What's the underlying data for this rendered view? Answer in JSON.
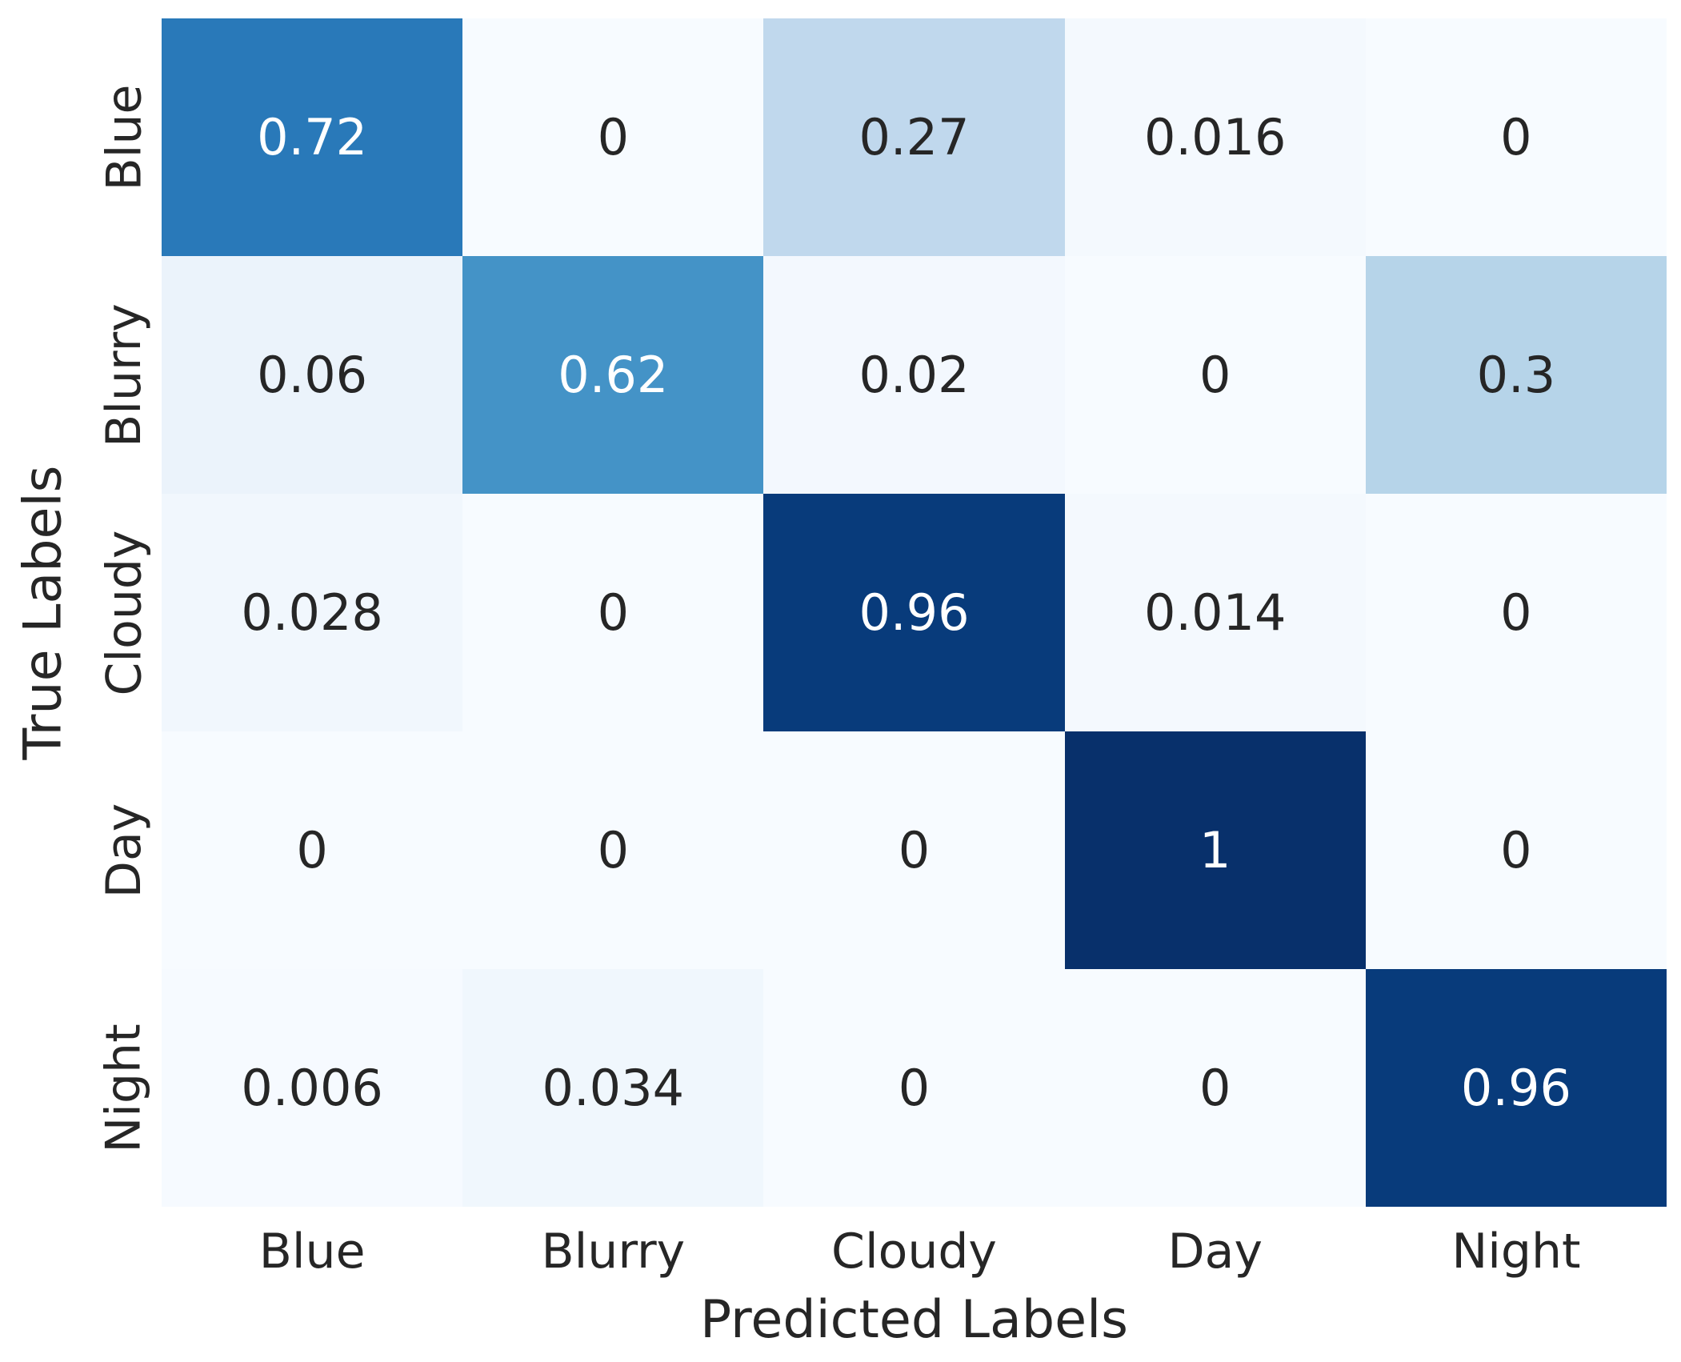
{
  "figure": {
    "background": "#ffffff"
  },
  "chart_data": {
    "type": "heatmap",
    "title": "",
    "xlabel": "Predicted Labels",
    "ylabel": "True Labels",
    "x_categories": [
      "Blue",
      "Blurry",
      "Cloudy",
      "Day",
      "Night"
    ],
    "y_categories": [
      "Blue",
      "Blurry",
      "Cloudy",
      "Day",
      "Night"
    ],
    "matrix": [
      [
        0.72,
        0,
        0.27,
        0.016,
        0
      ],
      [
        0.06,
        0.62,
        0.02,
        0,
        0.3
      ],
      [
        0.028,
        0,
        0.96,
        0.014,
        0
      ],
      [
        0,
        0,
        0,
        1,
        0
      ],
      [
        0.006,
        0.034,
        0,
        0,
        0.96
      ]
    ],
    "vmin": 0,
    "vmax": 1,
    "colormap": {
      "name": "Blues",
      "stops": [
        "#f7fbff",
        "#deebf7",
        "#c6dbef",
        "#9ecae1",
        "#6baed6",
        "#4292c6",
        "#2171b5",
        "#08519c",
        "#08306b"
      ]
    },
    "annotation_text_dark": "#262626",
    "annotation_text_light": "#ffffff",
    "axis_text_color": "#262626",
    "legend_position": "none",
    "grid": false
  }
}
